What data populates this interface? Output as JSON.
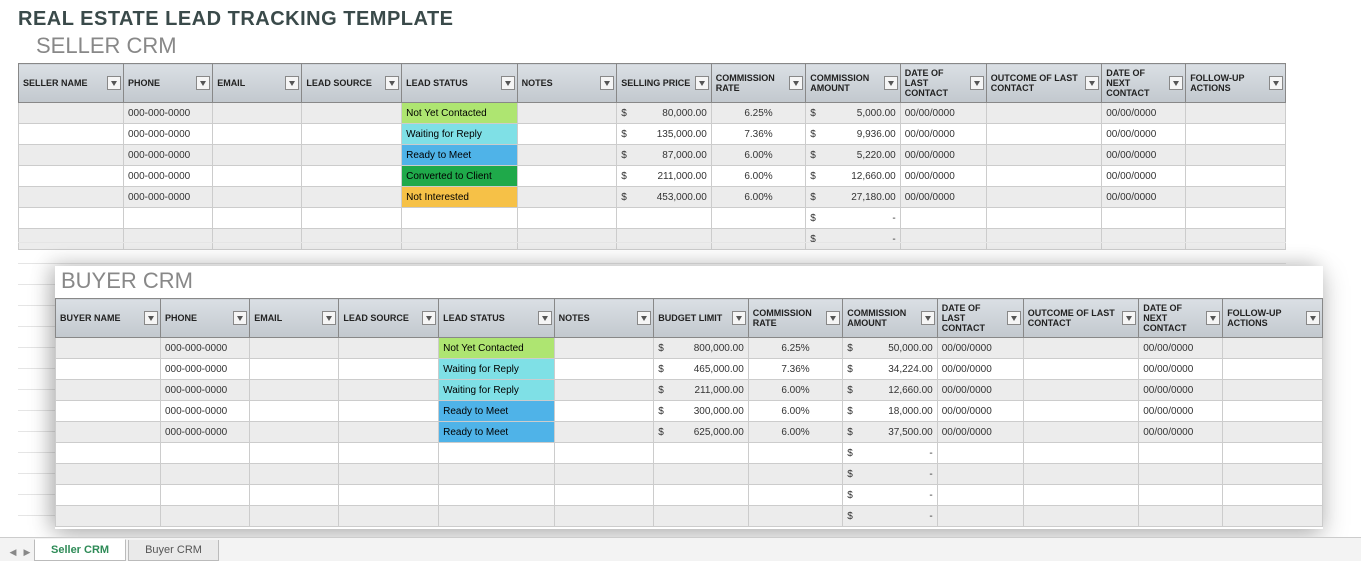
{
  "title": "REAL ESTATE LEAD TRACKING TEMPLATE",
  "seller": {
    "title": "SELLER CRM",
    "columns": [
      {
        "key": "name",
        "label": "SELLER NAME"
      },
      {
        "key": "phone",
        "label": "PHONE"
      },
      {
        "key": "email",
        "label": "EMAIL"
      },
      {
        "key": "source",
        "label": "LEAD SOURCE"
      },
      {
        "key": "status",
        "label": "LEAD STATUS"
      },
      {
        "key": "notes",
        "label": "NOTES"
      },
      {
        "key": "price",
        "label": "SELLING PRICE"
      },
      {
        "key": "rate",
        "label": "COMMISSION RATE"
      },
      {
        "key": "amount",
        "label": "COMMISSION AMOUNT"
      },
      {
        "key": "last",
        "label": "DATE OF LAST CONTACT"
      },
      {
        "key": "outcome",
        "label": "OUTCOME OF LAST CONTACT"
      },
      {
        "key": "next",
        "label": "DATE OF NEXT CONTACT"
      },
      {
        "key": "follow",
        "label": "FOLLOW-UP ACTIONS"
      }
    ],
    "rows": [
      {
        "phone": "000-000-0000",
        "status": "Not Yet Contacted",
        "price": "80,000.00",
        "rate": "6.25%",
        "amount": "5,000.00",
        "last": "00/00/0000",
        "next": "00/00/0000"
      },
      {
        "phone": "000-000-0000",
        "status": "Waiting for Reply",
        "price": "135,000.00",
        "rate": "7.36%",
        "amount": "9,936.00",
        "last": "00/00/0000",
        "next": "00/00/0000"
      },
      {
        "phone": "000-000-0000",
        "status": "Ready to Meet",
        "price": "87,000.00",
        "rate": "6.00%",
        "amount": "5,220.00",
        "last": "00/00/0000",
        "next": "00/00/0000"
      },
      {
        "phone": "000-000-0000",
        "status": "Converted to Client",
        "price": "211,000.00",
        "rate": "6.00%",
        "amount": "12,660.00",
        "last": "00/00/0000",
        "next": "00/00/0000"
      },
      {
        "phone": "000-000-0000",
        "status": "Not Interested",
        "price": "453,000.00",
        "rate": "6.00%",
        "amount": "27,180.00",
        "last": "00/00/0000",
        "next": "00/00/0000"
      },
      {
        "amount": "-"
      },
      {
        "amount": "-"
      }
    ]
  },
  "buyer": {
    "title": "BUYER CRM",
    "columns": [
      {
        "key": "name",
        "label": "BUYER NAME"
      },
      {
        "key": "phone",
        "label": "PHONE"
      },
      {
        "key": "email",
        "label": "EMAIL"
      },
      {
        "key": "source",
        "label": "LEAD SOURCE"
      },
      {
        "key": "status",
        "label": "LEAD STATUS"
      },
      {
        "key": "notes",
        "label": "NOTES"
      },
      {
        "key": "price",
        "label": "BUDGET LIMIT"
      },
      {
        "key": "rate",
        "label": "COMMISSION RATE"
      },
      {
        "key": "amount",
        "label": "COMMISSION AMOUNT"
      },
      {
        "key": "last",
        "label": "DATE OF LAST CONTACT"
      },
      {
        "key": "outcome",
        "label": "OUTCOME OF LAST CONTACT"
      },
      {
        "key": "next",
        "label": "DATE OF NEXT CONTACT"
      },
      {
        "key": "follow",
        "label": "FOLLOW-UP ACTIONS"
      }
    ],
    "rows": [
      {
        "phone": "000-000-0000",
        "status": "Not Yet Contacted",
        "price": "800,000.00",
        "rate": "6.25%",
        "amount": "50,000.00",
        "last": "00/00/0000",
        "next": "00/00/0000"
      },
      {
        "phone": "000-000-0000",
        "status": "Waiting for Reply",
        "price": "465,000.00",
        "rate": "7.36%",
        "amount": "34,224.00",
        "last": "00/00/0000",
        "next": "00/00/0000"
      },
      {
        "phone": "000-000-0000",
        "status": "Waiting for Reply",
        "price": "211,000.00",
        "rate": "6.00%",
        "amount": "12,660.00",
        "last": "00/00/0000",
        "next": "00/00/0000"
      },
      {
        "phone": "000-000-0000",
        "status": "Ready to Meet",
        "price": "300,000.00",
        "rate": "6.00%",
        "amount": "18,000.00",
        "last": "00/00/0000",
        "next": "00/00/0000"
      },
      {
        "phone": "000-000-0000",
        "status": "Ready to Meet",
        "price": "625,000.00",
        "rate": "6.00%",
        "amount": "37,500.00",
        "last": "00/00/0000",
        "next": "00/00/0000"
      },
      {
        "amount": "-"
      },
      {
        "amount": "-"
      },
      {
        "amount": "-"
      },
      {
        "amount": "-"
      }
    ]
  },
  "status_colors": {
    "Not Yet Contacted": "#aee571",
    "Waiting for Reply": "#7fe0e6",
    "Ready to Meet": "#4fb3e8",
    "Converted to Client": "#1fa94a",
    "Not Interested": "#f6c147"
  },
  "tabs": {
    "seller": "Seller CRM",
    "buyer": "Buyer CRM",
    "active": "seller"
  },
  "column_classes": [
    "col-name",
    "col-phone",
    "col-email",
    "col-source",
    "col-status",
    "col-notes",
    "col-price",
    "col-rate",
    "col-amt",
    "col-lastdt",
    "col-outcome",
    "col-nextdt",
    "col-follow"
  ],
  "group_sep_indices": [
    6,
    8,
    12
  ],
  "colors": {
    "header_bg_top": "#dadfe4",
    "header_bg_bottom": "#c2c8ce",
    "stripe_bg": "#ececec",
    "border": "#cccccc",
    "title_text": "#3a4a4a",
    "subtitle_text": "#888888",
    "tab_active_text": "#2e8b57"
  }
}
